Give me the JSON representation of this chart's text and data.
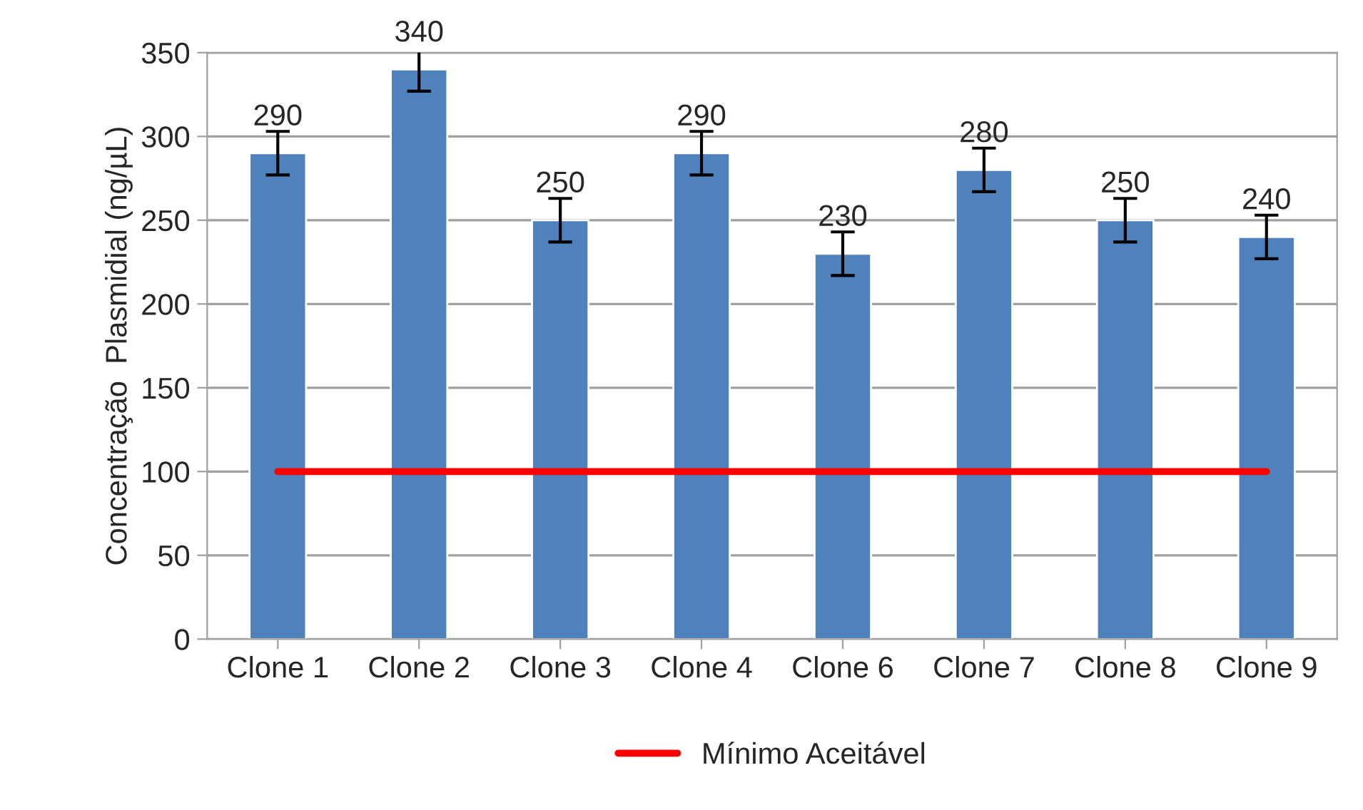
{
  "chart_data": {
    "type": "bar",
    "ylabel": "Concentração  Plasmidial (ng/µL)",
    "categories": [
      "Clone 1",
      "Clone 2",
      "Clone 3",
      "Clone 4",
      "Clone 6",
      "Clone 7",
      "Clone 8",
      "Clone 9"
    ],
    "series": [
      {
        "color": "#4f81bd",
        "values": [
          290,
          340,
          250,
          290,
          230,
          280,
          250,
          240
        ],
        "errors": [
          13,
          13,
          13,
          13,
          13,
          13,
          13,
          13
        ],
        "value_labels": [
          "290",
          "340",
          "250",
          "290",
          "230",
          "280",
          "250",
          "240"
        ]
      },
      {
        "type": "line",
        "name": "Mínimo Aceitável",
        "color": "#ff0000",
        "values": [
          100,
          100,
          100,
          100,
          100,
          100,
          100,
          100
        ]
      }
    ],
    "ylim": [
      0,
      350
    ],
    "yticks": [
      0,
      50,
      100,
      150,
      200,
      250,
      300,
      350
    ],
    "grid": "y",
    "legend": "bottom"
  }
}
